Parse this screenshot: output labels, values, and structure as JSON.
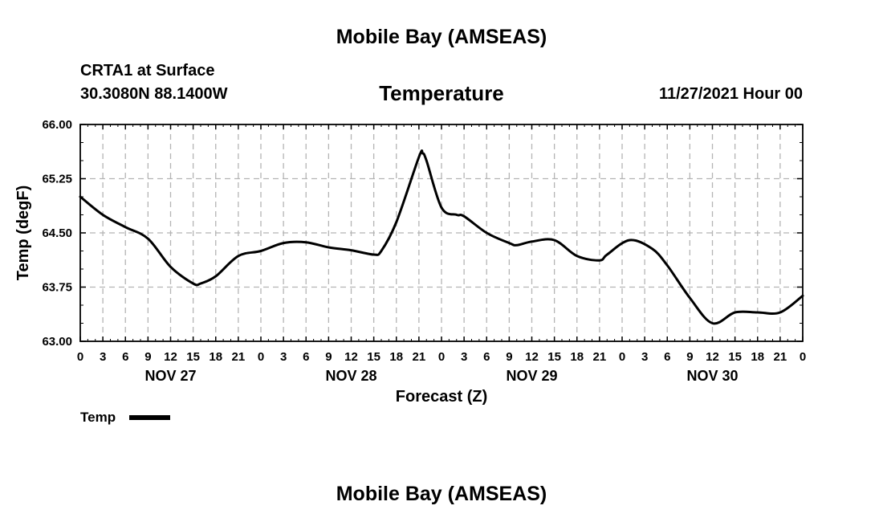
{
  "page": {
    "header_title": "Mobile Bay (AMSEAS)",
    "station": "CRTA1 at Surface",
    "coords": "30.3080N  88.1400W",
    "chart_title": "Temperature",
    "run_time": "11/27/2021 Hour 00",
    "footer_title": "Mobile Bay (AMSEAS)"
  },
  "chart_data": {
    "type": "line",
    "title": "Temperature",
    "xlabel": "Forecast (Z)",
    "ylabel": "Temp (degF)",
    "ylim": [
      63.0,
      66.0
    ],
    "yticks": [
      "63.00",
      "63.75",
      "64.50",
      "65.25",
      "66.00"
    ],
    "xlim": [
      0,
      96
    ],
    "xtick_labels": [
      "0",
      "3",
      "6",
      "9",
      "12",
      "15",
      "18",
      "21",
      "0",
      "3",
      "6",
      "9",
      "12",
      "15",
      "18",
      "21",
      "0",
      "3",
      "6",
      "9",
      "12",
      "15",
      "18",
      "21",
      "0",
      "3",
      "6",
      "9",
      "12",
      "15",
      "18",
      "21",
      "0"
    ],
    "day_labels": [
      {
        "hour": 12,
        "label": "NOV 27"
      },
      {
        "hour": 36,
        "label": "NOV 28"
      },
      {
        "hour": 60,
        "label": "NOV 29"
      },
      {
        "hour": 84,
        "label": "NOV 30"
      }
    ],
    "grid": true,
    "legend_position": "bottom-left",
    "series": [
      {
        "name": "Temp",
        "color": "#000000",
        "x": [
          0,
          3,
          6,
          9,
          12,
          15,
          16,
          18,
          21,
          24,
          27,
          30,
          33,
          36,
          39,
          40,
          42,
          45,
          45.5,
          46,
          48,
          50,
          51,
          54,
          57,
          58,
          60,
          63,
          66,
          69,
          70,
          73,
          76,
          78,
          81,
          84,
          87,
          90,
          93,
          96
        ],
        "y": [
          65.0,
          64.75,
          64.58,
          64.42,
          64.03,
          63.8,
          63.8,
          63.9,
          64.18,
          64.25,
          64.36,
          64.37,
          64.3,
          64.26,
          64.2,
          64.25,
          64.65,
          65.55,
          65.6,
          65.5,
          64.85,
          64.75,
          64.73,
          64.5,
          64.36,
          64.33,
          64.38,
          64.4,
          64.18,
          64.12,
          64.2,
          64.4,
          64.28,
          64.05,
          63.6,
          63.25,
          63.4,
          63.4,
          63.4,
          63.63
        ]
      }
    ]
  }
}
